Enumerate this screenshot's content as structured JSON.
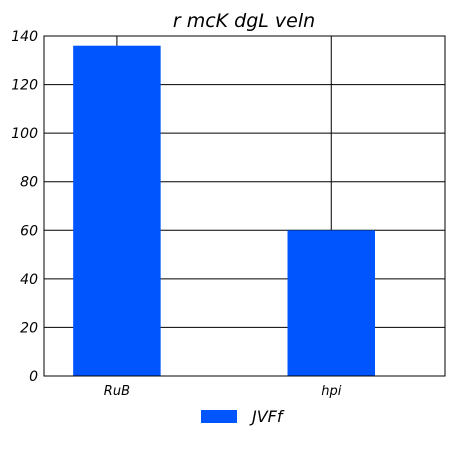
{
  "chart_data": {
    "type": "bar",
    "title": "r mcK dgL veln",
    "xlabel": "",
    "ylabel": "",
    "categories": [
      "RuB",
      "hpi"
    ],
    "series": [
      {
        "name": "JVFf",
        "values": [
          136,
          60
        ],
        "color": "#0055ff"
      }
    ],
    "ylim": [
      0,
      140
    ],
    "yticks": [
      0,
      20,
      40,
      60,
      80,
      100,
      120,
      140
    ],
    "grid": true,
    "legend_position": "bottom-center"
  }
}
